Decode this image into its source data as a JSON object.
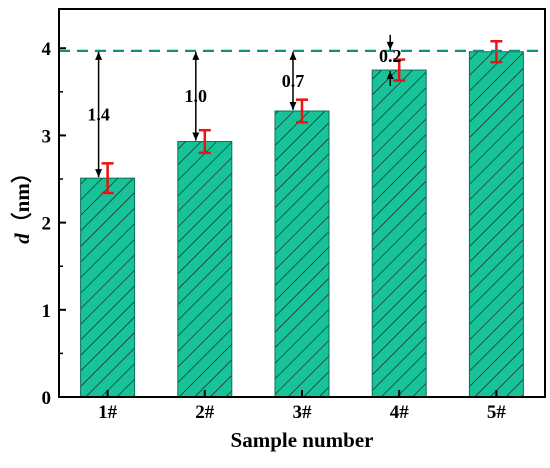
{
  "chart_data": {
    "type": "bar",
    "categories": [
      "1#",
      "2#",
      "3#",
      "4#",
      "5#"
    ],
    "values": [
      2.51,
      2.93,
      3.28,
      3.75,
      3.96
    ],
    "errors": [
      0.17,
      0.13,
      0.13,
      0.12,
      0.12
    ],
    "title": "",
    "xlabel": "Sample number",
    "ylabel_symbol": "d",
    "ylabel_unit": "（nm）",
    "ylim": [
      0,
      4.45
    ],
    "yticks": [
      0,
      1,
      2,
      3,
      4
    ],
    "grid": false,
    "reference_line": {
      "value": 3.97,
      "style": "dashed"
    },
    "differences": [
      {
        "category": "1#",
        "label": "1.4"
      },
      {
        "category": "2#",
        "label": "1.0"
      },
      {
        "category": "3#",
        "label": "0.7"
      },
      {
        "category": "4#",
        "label": "0.2"
      }
    ],
    "colors": {
      "bar_fill": "#19c39a",
      "hatch": "#111111",
      "error_bar": "#ee1111",
      "reference_line": "#0f8f7c",
      "axis": "#000000"
    }
  }
}
